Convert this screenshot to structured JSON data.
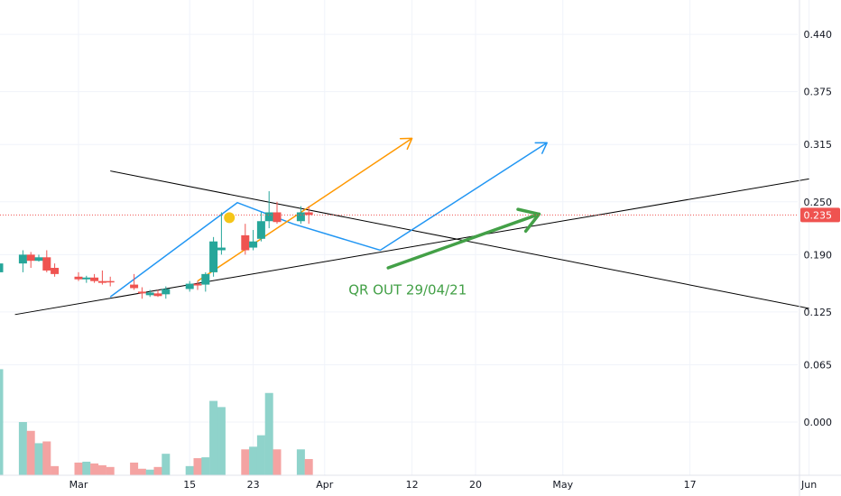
{
  "chart_data": {
    "type": "candlestick",
    "price_axis": {
      "ticks": [
        "0.440",
        "0.375",
        "0.315",
        "0.250",
        "0.190",
        "0.125",
        "0.065",
        "0.000"
      ],
      "ylim": [
        -0.061,
        0.473
      ]
    },
    "date_axis": {
      "ticks": [
        "Mar",
        "15",
        "23",
        "Apr",
        "12",
        "20",
        "May",
        "17",
        "Jun"
      ],
      "tick_dates": [
        "2021-03-01",
        "2021-03-15",
        "2021-03-23",
        "2021-04-01",
        "2021-04-12",
        "2021-04-20",
        "2021-05-01",
        "2021-05-17",
        "2021-06-01"
      ]
    },
    "last_price": {
      "label": "0.235",
      "value": 0.235,
      "color": "#ef5350"
    },
    "colors": {
      "up": "#26a69a",
      "down": "#ef5350",
      "volume_up": "#8fd3cb",
      "volume_down": "#f4a3a2",
      "blue_path": "#2196f3",
      "orange_path": "#ff9800",
      "green_arrow": "#43a047",
      "trendline": "#000000",
      "marker": "#f5c518"
    },
    "candles": [
      {
        "date": "2021-02-18",
        "open": 0.16,
        "high": 0.18,
        "low": 0.155,
        "close": 0.17,
        "volume": 0.012
      },
      {
        "date": "2021-02-19",
        "open": 0.17,
        "high": 0.215,
        "low": 0.16,
        "close": 0.18,
        "volume": 0.06
      },
      {
        "date": "2021-02-22",
        "open": 0.18,
        "high": 0.195,
        "low": 0.17,
        "close": 0.19,
        "volume": 0.0
      },
      {
        "date": "2021-02-23",
        "open": 0.19,
        "high": 0.193,
        "low": 0.175,
        "close": 0.183,
        "volume": -0.01
      },
      {
        "date": "2021-02-24",
        "open": 0.183,
        "high": 0.19,
        "low": 0.182,
        "close": 0.187,
        "volume": -0.024
      },
      {
        "date": "2021-02-25",
        "open": 0.187,
        "high": 0.195,
        "low": 0.17,
        "close": 0.172,
        "volume": -0.022
      },
      {
        "date": "2021-02-26",
        "open": 0.175,
        "high": 0.18,
        "low": 0.165,
        "close": 0.168,
        "volume": -0.05
      },
      {
        "date": "2021-03-01",
        "open": 0.165,
        "high": 0.17,
        "low": 0.16,
        "close": 0.162,
        "volume": -0.046
      },
      {
        "date": "2021-03-02",
        "open": 0.162,
        "high": 0.166,
        "low": 0.158,
        "close": 0.164,
        "volume": -0.045
      },
      {
        "date": "2021-03-03",
        "open": 0.164,
        "high": 0.168,
        "low": 0.158,
        "close": 0.16,
        "volume": -0.047
      },
      {
        "date": "2021-03-04",
        "open": 0.16,
        "high": 0.172,
        "low": 0.156,
        "close": 0.158,
        "volume": -0.049
      },
      {
        "date": "2021-03-05",
        "open": 0.16,
        "high": 0.165,
        "low": 0.154,
        "close": 0.159,
        "volume": -0.051
      },
      {
        "date": "2021-03-08",
        "open": 0.156,
        "high": 0.168,
        "low": 0.15,
        "close": 0.152,
        "volume": -0.046
      },
      {
        "date": "2021-03-09",
        "open": 0.148,
        "high": 0.153,
        "low": 0.14,
        "close": 0.146,
        "volume": -0.053
      },
      {
        "date": "2021-03-10",
        "open": 0.144,
        "high": 0.15,
        "low": 0.142,
        "close": 0.147,
        "volume": -0.054
      },
      {
        "date": "2021-03-11",
        "open": 0.146,
        "high": 0.15,
        "low": 0.142,
        "close": 0.143,
        "volume": -0.051
      },
      {
        "date": "2021-03-12",
        "open": 0.145,
        "high": 0.154,
        "low": 0.14,
        "close": 0.151,
        "volume": -0.036
      },
      {
        "date": "2021-03-15",
        "open": 0.151,
        "high": 0.16,
        "low": 0.148,
        "close": 0.157,
        "volume": -0.05
      },
      {
        "date": "2021-03-16",
        "open": 0.157,
        "high": 0.16,
        "low": 0.15,
        "close": 0.155,
        "volume": -0.041
      },
      {
        "date": "2021-03-17",
        "open": 0.156,
        "high": 0.17,
        "low": 0.148,
        "close": 0.168,
        "volume": -0.04
      },
      {
        "date": "2021-03-18",
        "open": 0.17,
        "high": 0.21,
        "low": 0.165,
        "close": 0.205,
        "volume": 0.024
      },
      {
        "date": "2021-03-19",
        "open": 0.195,
        "high": 0.238,
        "low": 0.19,
        "close": 0.198,
        "volume": 0.017
      },
      {
        "date": "2021-03-22",
        "open": 0.212,
        "high": 0.225,
        "low": 0.19,
        "close": 0.195,
        "volume": -0.031
      },
      {
        "date": "2021-03-23",
        "open": 0.198,
        "high": 0.218,
        "low": 0.195,
        "close": 0.205,
        "volume": -0.028
      },
      {
        "date": "2021-03-24",
        "open": 0.208,
        "high": 0.238,
        "low": 0.205,
        "close": 0.228,
        "volume": -0.015
      },
      {
        "date": "2021-03-25",
        "open": 0.228,
        "high": 0.262,
        "low": 0.22,
        "close": 0.238,
        "volume": 0.033
      },
      {
        "date": "2021-03-26",
        "open": 0.238,
        "high": 0.25,
        "low": 0.225,
        "close": 0.227,
        "volume": -0.031
      },
      {
        "date": "2021-03-29",
        "open": 0.228,
        "high": 0.245,
        "low": 0.225,
        "close": 0.238,
        "volume": -0.031
      },
      {
        "date": "2021-03-30",
        "open": 0.238,
        "high": 0.245,
        "low": 0.225,
        "close": 0.235,
        "volume": -0.042
      }
    ],
    "marker": {
      "date": "2021-03-20",
      "price": 0.232
    },
    "trendlines": [
      {
        "from": {
          "date": "2021-02-21",
          "price": 0.122
        },
        "to": {
          "date": "2021-06-01",
          "price": 0.276
        }
      },
      {
        "from": {
          "date": "2021-03-05",
          "price": 0.285
        },
        "to": {
          "date": "2021-06-01",
          "price": 0.129
        }
      }
    ],
    "blue_path": [
      {
        "date": "2021-03-05",
        "price": 0.142
      },
      {
        "date": "2021-03-21",
        "price": 0.249
      },
      {
        "date": "2021-03-28",
        "price": 0.225
      },
      {
        "date": "2021-04-08",
        "price": 0.195
      },
      {
        "date": "2021-04-29",
        "price": 0.317
      }
    ],
    "orange_path": [
      {
        "date": "2021-03-16",
        "price": 0.16
      },
      {
        "date": "2021-04-12",
        "price": 0.322
      }
    ],
    "green_arrow": [
      {
        "date": "2021-04-09",
        "price": 0.175
      },
      {
        "date": "2021-04-28",
        "price": 0.236
      }
    ],
    "annotations": [
      {
        "text": "QR OUT 29/04/21",
        "date": "2021-04-04",
        "price": 0.145
      }
    ]
  }
}
